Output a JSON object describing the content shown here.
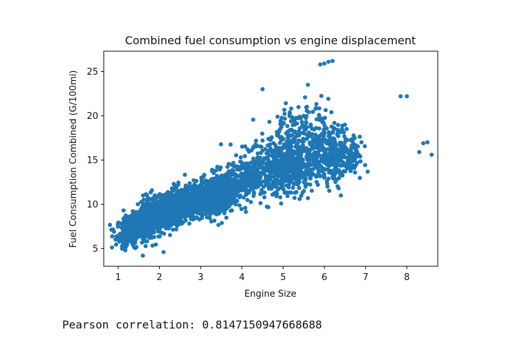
{
  "chart_data": {
    "type": "scatter",
    "title": "Combined fuel consumption vs engine displacement",
    "xlabel": "Engine Size",
    "ylabel": "Fuel Consumption Combined (G/100mi)",
    "xlim": [
      0.65,
      8.75
    ],
    "ylim": [
      3.0,
      27.3
    ],
    "xticks": [
      1,
      2,
      3,
      4,
      5,
      6,
      7,
      8
    ],
    "yticks": [
      5,
      10,
      15,
      20,
      25
    ],
    "grid": false,
    "marker_color": "#1f77b4",
    "correlation": 0.8147,
    "notable_points": [
      {
        "x": 5.9,
        "y": 25.8
      },
      {
        "x": 6.0,
        "y": 25.9
      },
      {
        "x": 6.1,
        "y": 26.1
      },
      {
        "x": 6.2,
        "y": 26.2
      },
      {
        "x": 4.5,
        "y": 23.0
      },
      {
        "x": 5.6,
        "y": 23.5
      },
      {
        "x": 7.85,
        "y": 22.2
      },
      {
        "x": 8.0,
        "y": 22.2
      },
      {
        "x": 8.4,
        "y": 16.9
      },
      {
        "x": 8.5,
        "y": 17.0
      },
      {
        "x": 8.3,
        "y": 15.9
      },
      {
        "x": 8.6,
        "y": 15.6
      },
      {
        "x": 0.9,
        "y": 6.9
      },
      {
        "x": 1.6,
        "y": 4.2
      },
      {
        "x": 2.1,
        "y": 4.6
      },
      {
        "x": 5.4,
        "y": 10.6
      },
      {
        "x": 5.6,
        "y": 10.7
      },
      {
        "x": 6.4,
        "y": 11.0
      },
      {
        "x": 6.5,
        "y": 19.0
      },
      {
        "x": 6.9,
        "y": 17.0
      }
    ]
  },
  "output": {
    "pearson_text": "Pearson correlation: 0.8147150947668688"
  }
}
